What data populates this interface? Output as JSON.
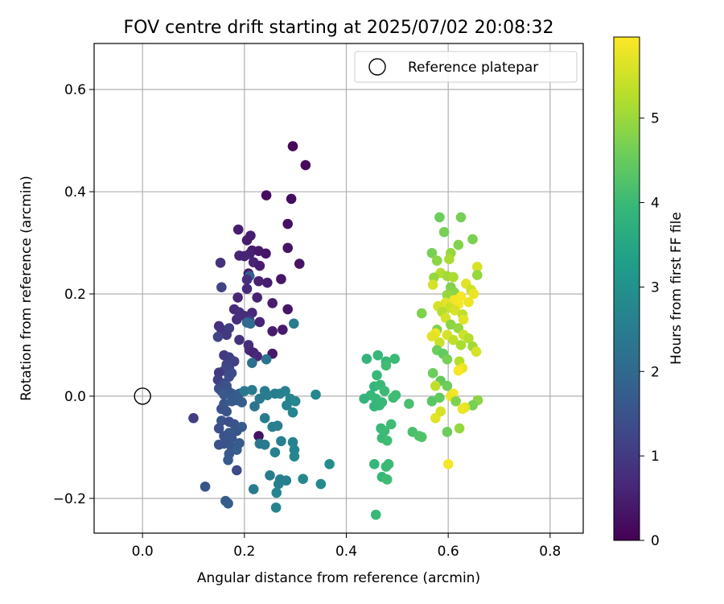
{
  "chart_data": {
    "type": "scatter",
    "title": "FOV centre drift starting at 2025/07/02 20:08:32",
    "xlabel": "Angular distance from reference (arcmin)",
    "ylabel": "Rotation from reference (arcmin)",
    "xlim": [
      -0.095,
      0.865
    ],
    "ylim": [
      -0.268,
      0.69
    ],
    "xticks": [
      0.0,
      0.2,
      0.4,
      0.6,
      0.8
    ],
    "xtick_labels": [
      "0.0",
      "0.2",
      "0.4",
      "0.6",
      "0.8"
    ],
    "yticks": [
      -0.2,
      0.0,
      0.2,
      0.4,
      0.6
    ],
    "ytick_labels": [
      "−0.2",
      "0.0",
      "0.2",
      "0.4",
      "0.6"
    ],
    "grid": true,
    "legend": {
      "position": "top-right",
      "entries": [
        {
          "label": "Reference platepar",
          "marker": "hollow-circle"
        }
      ]
    },
    "reference_point": {
      "x": 0.0,
      "y": 0.0
    },
    "colorbar": {
      "label": "Hours from first FF file",
      "range": [
        0,
        5.96
      ],
      "ticks": [
        0,
        1,
        2,
        3,
        4,
        5
      ],
      "tick_labels": [
        "0",
        "1",
        "2",
        "3",
        "4",
        "5"
      ],
      "colormap": "viridis"
    },
    "points": [
      {
        "x": 0.295,
        "y": 0.489,
        "h": 0.1
      },
      {
        "x": 0.32,
        "y": 0.452,
        "h": 0.15
      },
      {
        "x": 0.243,
        "y": 0.393,
        "h": 0.2
      },
      {
        "x": 0.292,
        "y": 0.386,
        "h": 0.2
      },
      {
        "x": 0.285,
        "y": 0.337,
        "h": 0.25
      },
      {
        "x": 0.188,
        "y": 0.326,
        "h": 0.5
      },
      {
        "x": 0.212,
        "y": 0.314,
        "h": 0.5
      },
      {
        "x": 0.205,
        "y": 0.305,
        "h": 0.45
      },
      {
        "x": 0.285,
        "y": 0.29,
        "h": 0.3
      },
      {
        "x": 0.215,
        "y": 0.285,
        "h": 0.45
      },
      {
        "x": 0.228,
        "y": 0.284,
        "h": 0.4
      },
      {
        "x": 0.242,
        "y": 0.279,
        "h": 0.35
      },
      {
        "x": 0.21,
        "y": 0.278,
        "h": 0.55
      },
      {
        "x": 0.19,
        "y": 0.275,
        "h": 0.6
      },
      {
        "x": 0.2,
        "y": 0.274,
        "h": 0.6
      },
      {
        "x": 0.308,
        "y": 0.259,
        "h": 0.3
      },
      {
        "x": 0.153,
        "y": 0.261,
        "h": 0.85
      },
      {
        "x": 0.218,
        "y": 0.262,
        "h": 0.6
      },
      {
        "x": 0.23,
        "y": 0.255,
        "h": 0.5
      },
      {
        "x": 0.208,
        "y": 0.24,
        "h": 0.5
      },
      {
        "x": 0.21,
        "y": 0.235,
        "h": 1.8
      },
      {
        "x": 0.205,
        "y": 0.228,
        "h": 0.8
      },
      {
        "x": 0.228,
        "y": 0.225,
        "h": 0.55
      },
      {
        "x": 0.245,
        "y": 0.222,
        "h": 0.5
      },
      {
        "x": 0.272,
        "y": 0.229,
        "h": 0.35
      },
      {
        "x": 0.155,
        "y": 0.213,
        "h": 1.2
      },
      {
        "x": 0.205,
        "y": 0.21,
        "h": 0.7
      },
      {
        "x": 0.187,
        "y": 0.193,
        "h": 0.65
      },
      {
        "x": 0.225,
        "y": 0.193,
        "h": 0.55
      },
      {
        "x": 0.255,
        "y": 0.182,
        "h": 0.45
      },
      {
        "x": 0.285,
        "y": 0.17,
        "h": 0.35
      },
      {
        "x": 0.18,
        "y": 0.17,
        "h": 0.7
      },
      {
        "x": 0.19,
        "y": 0.164,
        "h": 0.8
      },
      {
        "x": 0.215,
        "y": 0.163,
        "h": 0.7
      },
      {
        "x": 0.2,
        "y": 0.157,
        "h": 0.75
      },
      {
        "x": 0.185,
        "y": 0.15,
        "h": 0.8
      },
      {
        "x": 0.21,
        "y": 0.148,
        "h": 1.0
      },
      {
        "x": 0.205,
        "y": 0.144,
        "h": 2.0
      },
      {
        "x": 0.212,
        "y": 0.142,
        "h": 2.1
      },
      {
        "x": 0.23,
        "y": 0.145,
        "h": 0.6
      },
      {
        "x": 0.297,
        "y": 0.142,
        "h": 2.5
      },
      {
        "x": 0.275,
        "y": 0.13,
        "h": 0.4
      },
      {
        "x": 0.15,
        "y": 0.137,
        "h": 0.8
      },
      {
        "x": 0.155,
        "y": 0.13,
        "h": 0.9
      },
      {
        "x": 0.17,
        "y": 0.133,
        "h": 1.1
      },
      {
        "x": 0.165,
        "y": 0.12,
        "h": 1.0
      },
      {
        "x": 0.148,
        "y": 0.116,
        "h": 1.2
      },
      {
        "x": 0.255,
        "y": 0.127,
        "h": 0.45
      },
      {
        "x": 0.19,
        "y": 0.11,
        "h": 0.85
      },
      {
        "x": 0.208,
        "y": 0.1,
        "h": 0.75
      },
      {
        "x": 0.21,
        "y": 0.09,
        "h": 0.7
      },
      {
        "x": 0.218,
        "y": 0.085,
        "h": 0.6
      },
      {
        "x": 0.225,
        "y": 0.078,
        "h": 0.65
      },
      {
        "x": 0.255,
        "y": 0.083,
        "h": 0.4
      },
      {
        "x": 0.243,
        "y": 0.072,
        "h": 2.3
      },
      {
        "x": 0.16,
        "y": 0.08,
        "h": 1.0
      },
      {
        "x": 0.17,
        "y": 0.076,
        "h": 1.05
      },
      {
        "x": 0.175,
        "y": 0.07,
        "h": 1.1
      },
      {
        "x": 0.18,
        "y": 0.068,
        "h": 1.15
      },
      {
        "x": 0.165,
        "y": 0.062,
        "h": 1.2
      },
      {
        "x": 0.17,
        "y": 0.055,
        "h": 1.25
      },
      {
        "x": 0.16,
        "y": 0.05,
        "h": 1.3
      },
      {
        "x": 0.175,
        "y": 0.045,
        "h": 1.35
      },
      {
        "x": 0.15,
        "y": 0.046,
        "h": 1.0
      },
      {
        "x": 0.215,
        "y": 0.065,
        "h": 2.2
      },
      {
        "x": 0.17,
        "y": 0.038,
        "h": 1.4
      },
      {
        "x": 0.148,
        "y": 0.032,
        "h": 1.1
      },
      {
        "x": 0.16,
        "y": 0.025,
        "h": 1.3
      },
      {
        "x": 0.165,
        "y": 0.02,
        "h": 1.5
      },
      {
        "x": 0.15,
        "y": 0.015,
        "h": 1.4
      },
      {
        "x": 0.155,
        "y": 0.01,
        "h": 1.45
      },
      {
        "x": 0.17,
        "y": 0.008,
        "h": 1.55
      },
      {
        "x": 0.175,
        "y": 0.005,
        "h": 1.6
      },
      {
        "x": 0.16,
        "y": 0.003,
        "h": 1.65
      },
      {
        "x": 0.18,
        "y": 0.0,
        "h": 1.7
      },
      {
        "x": 0.19,
        "y": 0.005,
        "h": 1.75
      },
      {
        "x": 0.2,
        "y": 0.01,
        "h": 2.4
      },
      {
        "x": 0.215,
        "y": 0.012,
        "h": 2.45
      },
      {
        "x": 0.24,
        "y": 0.01,
        "h": 2.5
      },
      {
        "x": 0.26,
        "y": 0.005,
        "h": 2.55
      },
      {
        "x": 0.27,
        "y": 0.005,
        "h": 2.6
      },
      {
        "x": 0.28,
        "y": 0.01,
        "h": 2.65
      },
      {
        "x": 0.29,
        "y": -0.005,
        "h": 2.7
      },
      {
        "x": 0.3,
        "y": -0.01,
        "h": 2.75
      },
      {
        "x": 0.34,
        "y": 0.003,
        "h": 2.8
      },
      {
        "x": 0.23,
        "y": -0.005,
        "h": 2.45
      },
      {
        "x": 0.245,
        "y": 0.002,
        "h": 2.5
      },
      {
        "x": 0.16,
        "y": -0.015,
        "h": 1.6
      },
      {
        "x": 0.175,
        "y": -0.01,
        "h": 1.65
      },
      {
        "x": 0.185,
        "y": -0.008,
        "h": 1.7
      },
      {
        "x": 0.195,
        "y": -0.012,
        "h": 1.75
      },
      {
        "x": 0.22,
        "y": -0.02,
        "h": 2.3
      },
      {
        "x": 0.283,
        "y": -0.018,
        "h": 2.65
      },
      {
        "x": 0.155,
        "y": -0.025,
        "h": 1.5
      },
      {
        "x": 0.165,
        "y": -0.03,
        "h": 1.55
      },
      {
        "x": 0.295,
        "y": -0.032,
        "h": 2.7
      },
      {
        "x": 0.1,
        "y": -0.043,
        "h": 1.1
      },
      {
        "x": 0.24,
        "y": -0.043,
        "h": 2.5
      },
      {
        "x": 0.155,
        "y": -0.048,
        "h": 1.6
      },
      {
        "x": 0.17,
        "y": -0.05,
        "h": 1.4
      },
      {
        "x": 0.18,
        "y": -0.055,
        "h": 1.5
      },
      {
        "x": 0.265,
        "y": -0.058,
        "h": 2.55
      },
      {
        "x": 0.255,
        "y": -0.06,
        "h": 2.6
      },
      {
        "x": 0.195,
        "y": -0.06,
        "h": 1.7
      },
      {
        "x": 0.15,
        "y": -0.063,
        "h": 1.45
      },
      {
        "x": 0.185,
        "y": -0.068,
        "h": 1.6
      },
      {
        "x": 0.17,
        "y": -0.072,
        "h": 1.65
      },
      {
        "x": 0.16,
        "y": -0.078,
        "h": 1.5
      },
      {
        "x": 0.228,
        "y": -0.078,
        "h": 0.3
      },
      {
        "x": 0.175,
        "y": -0.082,
        "h": 1.55
      },
      {
        "x": 0.165,
        "y": -0.088,
        "h": 1.6
      },
      {
        "x": 0.272,
        "y": -0.088,
        "h": 2.6
      },
      {
        "x": 0.295,
        "y": -0.09,
        "h": 2.65
      },
      {
        "x": 0.15,
        "y": -0.095,
        "h": 1.5
      },
      {
        "x": 0.16,
        "y": -0.093,
        "h": 1.55
      },
      {
        "x": 0.19,
        "y": -0.092,
        "h": 1.7
      },
      {
        "x": 0.23,
        "y": -0.093,
        "h": 2.4
      },
      {
        "x": 0.24,
        "y": -0.095,
        "h": 2.45
      },
      {
        "x": 0.175,
        "y": -0.1,
        "h": 1.6
      },
      {
        "x": 0.185,
        "y": -0.105,
        "h": 1.75
      },
      {
        "x": 0.298,
        "y": -0.105,
        "h": 2.7
      },
      {
        "x": 0.26,
        "y": -0.11,
        "h": 2.6
      },
      {
        "x": 0.17,
        "y": -0.113,
        "h": 1.65
      },
      {
        "x": 0.298,
        "y": -0.118,
        "h": 2.75
      },
      {
        "x": 0.168,
        "y": -0.125,
        "h": 1.7
      },
      {
        "x": 0.185,
        "y": -0.145,
        "h": 1.3
      },
      {
        "x": 0.367,
        "y": -0.133,
        "h": 2.9
      },
      {
        "x": 0.25,
        "y": -0.155,
        "h": 2.5
      },
      {
        "x": 0.27,
        "y": -0.163,
        "h": 2.55
      },
      {
        "x": 0.282,
        "y": -0.165,
        "h": 2.6
      },
      {
        "x": 0.315,
        "y": -0.162,
        "h": 2.8
      },
      {
        "x": 0.35,
        "y": -0.172,
        "h": 2.85
      },
      {
        "x": 0.267,
        "y": -0.172,
        "h": 2.6
      },
      {
        "x": 0.123,
        "y": -0.177,
        "h": 1.6
      },
      {
        "x": 0.218,
        "y": -0.182,
        "h": 2.5
      },
      {
        "x": 0.263,
        "y": -0.189,
        "h": 2.7
      },
      {
        "x": 0.163,
        "y": -0.205,
        "h": 1.7
      },
      {
        "x": 0.168,
        "y": -0.21,
        "h": 1.75
      },
      {
        "x": 0.262,
        "y": -0.218,
        "h": 2.65
      },
      {
        "x": 0.44,
        "y": 0.073,
        "h": 3.9
      },
      {
        "x": 0.462,
        "y": 0.08,
        "h": 4.0
      },
      {
        "x": 0.478,
        "y": 0.068,
        "h": 4.0
      },
      {
        "x": 0.495,
        "y": 0.073,
        "h": 4.05
      },
      {
        "x": 0.478,
        "y": 0.06,
        "h": 4.1
      },
      {
        "x": 0.46,
        "y": 0.041,
        "h": 4.0
      },
      {
        "x": 0.455,
        "y": 0.019,
        "h": 3.95
      },
      {
        "x": 0.467,
        "y": 0.022,
        "h": 4.0
      },
      {
        "x": 0.448,
        "y": 0.002,
        "h": 4.0
      },
      {
        "x": 0.435,
        "y": -0.005,
        "h": 3.9
      },
      {
        "x": 0.458,
        "y": -0.005,
        "h": 4.0
      },
      {
        "x": 0.475,
        "y": 0.01,
        "h": 4.05
      },
      {
        "x": 0.492,
        "y": -0.003,
        "h": 4.1
      },
      {
        "x": 0.497,
        "y": 0.002,
        "h": 4.1
      },
      {
        "x": 0.465,
        "y": -0.018,
        "h": 4.0
      },
      {
        "x": 0.455,
        "y": -0.02,
        "h": 3.95
      },
      {
        "x": 0.47,
        "y": -0.012,
        "h": 4.0
      },
      {
        "x": 0.523,
        "y": -0.015,
        "h": 4.2
      },
      {
        "x": 0.488,
        "y": -0.055,
        "h": 4.1
      },
      {
        "x": 0.468,
        "y": -0.063,
        "h": 4.0
      },
      {
        "x": 0.475,
        "y": -0.068,
        "h": 4.05
      },
      {
        "x": 0.53,
        "y": -0.07,
        "h": 4.2
      },
      {
        "x": 0.543,
        "y": -0.078,
        "h": 4.25
      },
      {
        "x": 0.548,
        "y": -0.08,
        "h": 4.3
      },
      {
        "x": 0.47,
        "y": -0.082,
        "h": 4.05
      },
      {
        "x": 0.48,
        "y": -0.087,
        "h": 4.1
      },
      {
        "x": 0.455,
        "y": -0.133,
        "h": 3.95
      },
      {
        "x": 0.483,
        "y": -0.133,
        "h": 4.05
      },
      {
        "x": 0.478,
        "y": -0.138,
        "h": 4.05
      },
      {
        "x": 0.47,
        "y": -0.158,
        "h": 4.0
      },
      {
        "x": 0.48,
        "y": -0.163,
        "h": 4.1
      },
      {
        "x": 0.458,
        "y": -0.232,
        "h": 4.0
      },
      {
        "x": 0.583,
        "y": 0.35,
        "h": 4.6
      },
      {
        "x": 0.625,
        "y": 0.35,
        "h": 4.7
      },
      {
        "x": 0.592,
        "y": 0.321,
        "h": 4.7
      },
      {
        "x": 0.648,
        "y": 0.307,
        "h": 4.75
      },
      {
        "x": 0.62,
        "y": 0.296,
        "h": 4.8
      },
      {
        "x": 0.568,
        "y": 0.28,
        "h": 4.7
      },
      {
        "x": 0.605,
        "y": 0.28,
        "h": 5.0
      },
      {
        "x": 0.602,
        "y": 0.268,
        "h": 5.2
      },
      {
        "x": 0.578,
        "y": 0.265,
        "h": 4.9
      },
      {
        "x": 0.657,
        "y": 0.253,
        "h": 5.6
      },
      {
        "x": 0.585,
        "y": 0.241,
        "h": 5.3
      },
      {
        "x": 0.572,
        "y": 0.232,
        "h": 5.0
      },
      {
        "x": 0.598,
        "y": 0.235,
        "h": 5.1
      },
      {
        "x": 0.61,
        "y": 0.233,
        "h": 5.2
      },
      {
        "x": 0.657,
        "y": 0.237,
        "h": 5.0
      },
      {
        "x": 0.57,
        "y": 0.218,
        "h": 5.6
      },
      {
        "x": 0.605,
        "y": 0.213,
        "h": 4.8
      },
      {
        "x": 0.635,
        "y": 0.22,
        "h": 5.7
      },
      {
        "x": 0.645,
        "y": 0.208,
        "h": 5.5
      },
      {
        "x": 0.612,
        "y": 0.203,
        "h": 4.9
      },
      {
        "x": 0.598,
        "y": 0.198,
        "h": 5.0
      },
      {
        "x": 0.65,
        "y": 0.2,
        "h": 5.8
      },
      {
        "x": 0.625,
        "y": 0.195,
        "h": 5.9
      },
      {
        "x": 0.612,
        "y": 0.188,
        "h": 5.85
      },
      {
        "x": 0.595,
        "y": 0.183,
        "h": 5.7
      },
      {
        "x": 0.58,
        "y": 0.176,
        "h": 5.6
      },
      {
        "x": 0.62,
        "y": 0.18,
        "h": 5.9
      },
      {
        "x": 0.64,
        "y": 0.184,
        "h": 5.8
      },
      {
        "x": 0.603,
        "y": 0.173,
        "h": 5.5
      },
      {
        "x": 0.588,
        "y": 0.165,
        "h": 5.3
      },
      {
        "x": 0.613,
        "y": 0.168,
        "h": 5.6
      },
      {
        "x": 0.628,
        "y": 0.16,
        "h": 5.4
      },
      {
        "x": 0.548,
        "y": 0.162,
        "h": 4.8
      },
      {
        "x": 0.595,
        "y": 0.153,
        "h": 5.6
      },
      {
        "x": 0.63,
        "y": 0.15,
        "h": 5.7
      },
      {
        "x": 0.605,
        "y": 0.14,
        "h": 4.9
      },
      {
        "x": 0.578,
        "y": 0.13,
        "h": 4.8
      },
      {
        "x": 0.62,
        "y": 0.133,
        "h": 5.0
      },
      {
        "x": 0.575,
        "y": 0.123,
        "h": 5.8
      },
      {
        "x": 0.568,
        "y": 0.117,
        "h": 5.7
      },
      {
        "x": 0.598,
        "y": 0.12,
        "h": 5.6
      },
      {
        "x": 0.63,
        "y": 0.12,
        "h": 5.5
      },
      {
        "x": 0.61,
        "y": 0.11,
        "h": 5.4
      },
      {
        "x": 0.64,
        "y": 0.113,
        "h": 5.3
      },
      {
        "x": 0.583,
        "y": 0.105,
        "h": 5.5
      },
      {
        "x": 0.625,
        "y": 0.1,
        "h": 5.2
      },
      {
        "x": 0.578,
        "y": 0.09,
        "h": 4.6
      },
      {
        "x": 0.648,
        "y": 0.097,
        "h": 5.1
      },
      {
        "x": 0.59,
        "y": 0.083,
        "h": 4.5
      },
      {
        "x": 0.655,
        "y": 0.087,
        "h": 5.6
      },
      {
        "x": 0.598,
        "y": 0.072,
        "h": 4.7
      },
      {
        "x": 0.622,
        "y": 0.068,
        "h": 5.3
      },
      {
        "x": 0.628,
        "y": 0.055,
        "h": 5.8
      },
      {
        "x": 0.62,
        "y": 0.05,
        "h": 5.9
      },
      {
        "x": 0.57,
        "y": 0.045,
        "h": 4.6
      },
      {
        "x": 0.585,
        "y": 0.03,
        "h": 4.5
      },
      {
        "x": 0.575,
        "y": 0.02,
        "h": 5.4
      },
      {
        "x": 0.598,
        "y": 0.02,
        "h": 4.6
      },
      {
        "x": 0.61,
        "y": 0.005,
        "h": 5.9
      },
      {
        "x": 0.605,
        "y": 0.0,
        "h": 5.8
      },
      {
        "x": 0.583,
        "y": -0.003,
        "h": 4.5
      },
      {
        "x": 0.658,
        "y": -0.008,
        "h": 4.9
      },
      {
        "x": 0.568,
        "y": -0.01,
        "h": 4.4
      },
      {
        "x": 0.615,
        "y": -0.01,
        "h": 4.8
      },
      {
        "x": 0.648,
        "y": -0.018,
        "h": 4.7
      },
      {
        "x": 0.633,
        "y": -0.022,
        "h": 5.7
      },
      {
        "x": 0.628,
        "y": -0.025,
        "h": 5.8
      },
      {
        "x": 0.585,
        "y": -0.03,
        "h": 5.6
      },
      {
        "x": 0.575,
        "y": -0.043,
        "h": 5.7
      },
      {
        "x": 0.622,
        "y": -0.063,
        "h": 5.0
      },
      {
        "x": 0.598,
        "y": -0.07,
        "h": 4.6
      },
      {
        "x": 0.6,
        "y": -0.133,
        "h": 5.9
      }
    ]
  }
}
